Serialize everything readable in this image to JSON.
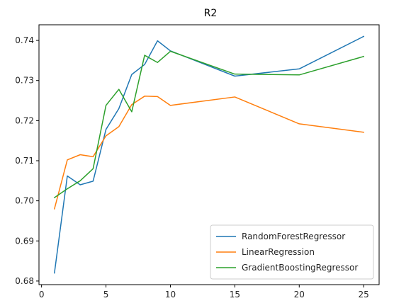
{
  "chart_data": {
    "type": "line",
    "title": "R2",
    "xlabel": "",
    "ylabel": "",
    "xlim": [
      -0.2,
      26.2
    ],
    "ylim": [
      0.6791,
      0.7439
    ],
    "xticks": [
      0,
      5,
      10,
      15,
      20,
      25
    ],
    "yticks": [
      0.68,
      0.69,
      0.7,
      0.71,
      0.72,
      0.73,
      0.74
    ],
    "ytick_labels": [
      "0.68",
      "0.69",
      "0.70",
      "0.71",
      "0.72",
      "0.73",
      "0.74"
    ],
    "grid": false,
    "legend_position": "bottom-right",
    "x": [
      1,
      2,
      3,
      4,
      5,
      6,
      7,
      8,
      9,
      10,
      15,
      20,
      25
    ],
    "series": [
      {
        "name": "RandomForestRegressor",
        "color": "#1f77b4",
        "values": [
          0.682,
          0.7062,
          0.704,
          0.7049,
          0.7178,
          0.723,
          0.7315,
          0.734,
          0.7399,
          0.7374,
          0.7311,
          0.7329,
          0.741
        ]
      },
      {
        "name": "LinearRegression",
        "color": "#ff7f0e",
        "values": [
          0.698,
          0.7102,
          0.7115,
          0.711,
          0.7162,
          0.7185,
          0.724,
          0.7261,
          0.726,
          0.7238,
          0.7259,
          0.7192,
          0.7171
        ]
      },
      {
        "name": "GradientBoostingRegressor",
        "color": "#2ca02c",
        "values": [
          0.7008,
          0.703,
          0.705,
          0.708,
          0.7238,
          0.7278,
          0.7222,
          0.7363,
          0.7345,
          0.7373,
          0.7316,
          0.7314,
          0.736
        ]
      }
    ]
  }
}
